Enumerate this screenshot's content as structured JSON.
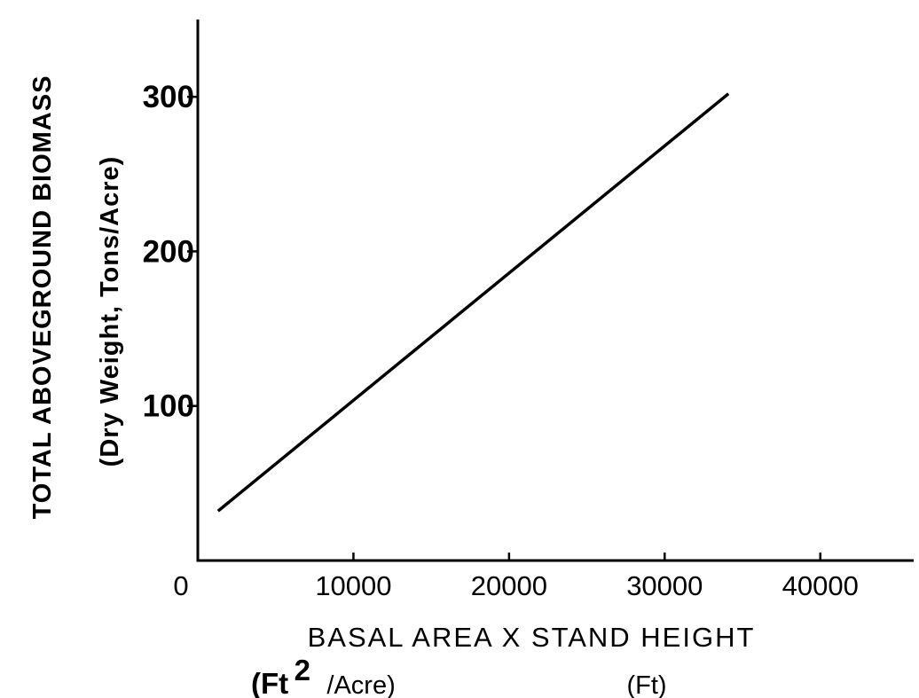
{
  "chart_data": {
    "type": "line",
    "xlabel": "BASAL AREA X STAND HEIGHT",
    "xunits": {
      "part1_open": "(Ft",
      "part1_sup": "2",
      "part1_close": "/Acre)",
      "part2": "(Ft)"
    },
    "ylabel_line1": "TOTAL ABOVEGROUND BIOMASS",
    "ylabel_line2": "(Dry Weight, Tons/Acre)",
    "xlim": [
      0,
      46000
    ],
    "ylim": [
      0,
      350
    ],
    "xticks": [
      {
        "value": 0,
        "label": "0"
      },
      {
        "value": 10000,
        "label": "10000"
      },
      {
        "value": 20000,
        "label": "20000"
      },
      {
        "value": 30000,
        "label": "30000"
      },
      {
        "value": 40000,
        "label": "40000"
      }
    ],
    "yticks": [
      {
        "value": 100,
        "label": "100"
      },
      {
        "value": 200,
        "label": "200"
      },
      {
        "value": 300,
        "label": "300"
      }
    ],
    "grid": false,
    "series": [
      {
        "x": [
          1300,
          34100
        ],
        "y": [
          32,
          302
        ]
      }
    ]
  }
}
